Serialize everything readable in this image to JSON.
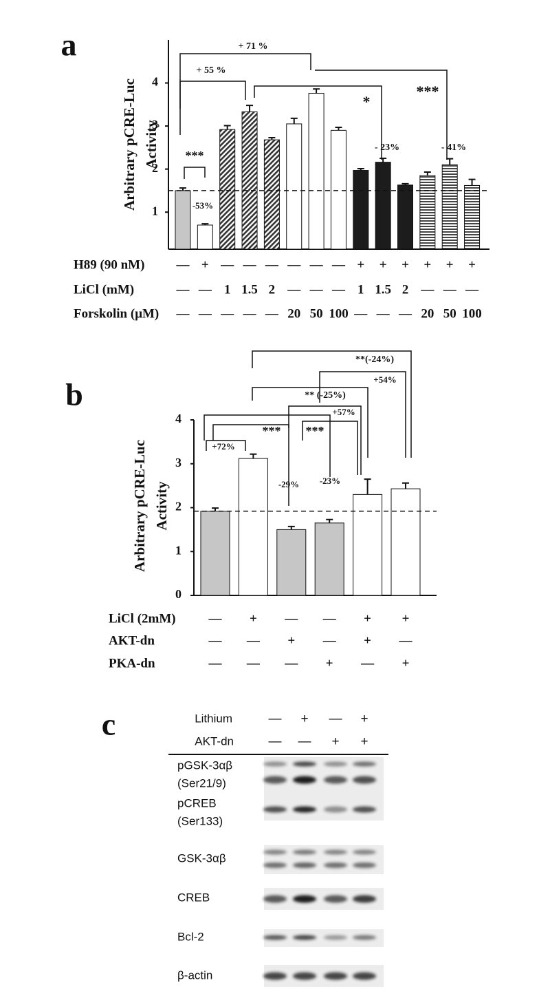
{
  "chart_data": [
    {
      "type": "bar",
      "panel_label": "a",
      "ylabel": [
        "Arbitrary pCRE-Luc",
        "Activity"
      ],
      "categories": [
        null,
        null,
        null,
        null,
        null,
        null,
        null,
        null,
        null,
        null,
        null,
        null,
        null,
        null
      ],
      "values": [
        1.5,
        0.7,
        2.92,
        3.33,
        2.68,
        3.05,
        3.76,
        2.9,
        1.97,
        2.16,
        1.63,
        1.85,
        2.1,
        1.62
      ],
      "errors": [
        0.06,
        0.03,
        0.09,
        0.15,
        0.05,
        0.13,
        0.1,
        0.07,
        0.04,
        0.09,
        0.03,
        0.08,
        0.14,
        0.14
      ],
      "fills": [
        "gray",
        "white",
        "hatched",
        "hatched",
        "hatched",
        "white",
        "white",
        "white",
        "black",
        "black",
        "black",
        "striped",
        "striped",
        "striped"
      ],
      "reference_line": 1.5,
      "ylim": [
        0.14,
        5
      ],
      "yticks": [
        1,
        2,
        3,
        4
      ],
      "treatments": [
        {
          "label": "H89 (90 nM)",
          "values": [
            "—",
            "+",
            "—",
            "—",
            "—",
            "—",
            "—",
            "—",
            "+",
            "+",
            "+",
            "+",
            "+",
            "+"
          ]
        },
        {
          "label": "LiCl (mM)",
          "values": [
            "—",
            "—",
            "1",
            "1.5",
            "2",
            "—",
            "—",
            "—",
            "1",
            "1.5",
            "2",
            "—",
            "—",
            "—"
          ]
        },
        {
          "label": "Forskolin (μM)",
          "values": [
            "—",
            "—",
            "—",
            "—",
            "—",
            "20",
            "50",
            "100",
            "—",
            "—",
            "—",
            "20",
            "50",
            "100"
          ]
        }
      ],
      "annotations": [
        "+ 71 %",
        "+ 55 %",
        "***",
        "-53%",
        "*",
        "***",
        "- 23%",
        "- 41%"
      ]
    },
    {
      "type": "bar",
      "panel_label": "b",
      "ylabel": [
        "Arbitrary pCRE-Luc",
        "Activity"
      ],
      "categories": [
        null,
        null,
        null,
        null,
        null,
        null
      ],
      "values": [
        1.92,
        3.12,
        1.5,
        1.65,
        2.3,
        2.43
      ],
      "errors": [
        0.07,
        0.1,
        0.07,
        0.08,
        0.35,
        0.13
      ],
      "fills": [
        "gray",
        "white",
        "gray",
        "gray",
        "white",
        "white"
      ],
      "reference_line": 1.92,
      "ylim": [
        0,
        4
      ],
      "yticks": [
        0,
        1,
        2,
        3,
        4
      ],
      "treatments": [
        {
          "label": "LiCl (2mM)",
          "values": [
            "—",
            "+",
            "—",
            "—",
            "+",
            "+"
          ]
        },
        {
          "label": "AKT-dn",
          "values": [
            "—",
            "—",
            "+",
            "—",
            "+",
            "—"
          ]
        },
        {
          "label": "PKA-dn",
          "values": [
            "—",
            "—",
            "—",
            "+",
            "—",
            "+"
          ]
        }
      ],
      "annotations": [
        "+72%",
        "***",
        "***",
        "-29%",
        "-23%",
        "** (-25%)",
        "+57%",
        "+54%",
        "**(-24%)"
      ]
    }
  ],
  "blot": {
    "panel_label": "c",
    "conditions": [
      {
        "label": "Lithium",
        "values": [
          "—",
          "+",
          "—",
          "+"
        ]
      },
      {
        "label": "AKT-dn",
        "values": [
          "—",
          "—",
          "+",
          "+"
        ]
      }
    ],
    "rows": [
      [
        "pGSK-3αβ",
        "(Ser21/9)"
      ],
      [
        "pCREB",
        "(Ser133)"
      ],
      [
        "GSK-3αβ"
      ],
      [
        "CREB"
      ],
      [
        "Bcl-2"
      ],
      [
        "β-actin"
      ]
    ]
  }
}
